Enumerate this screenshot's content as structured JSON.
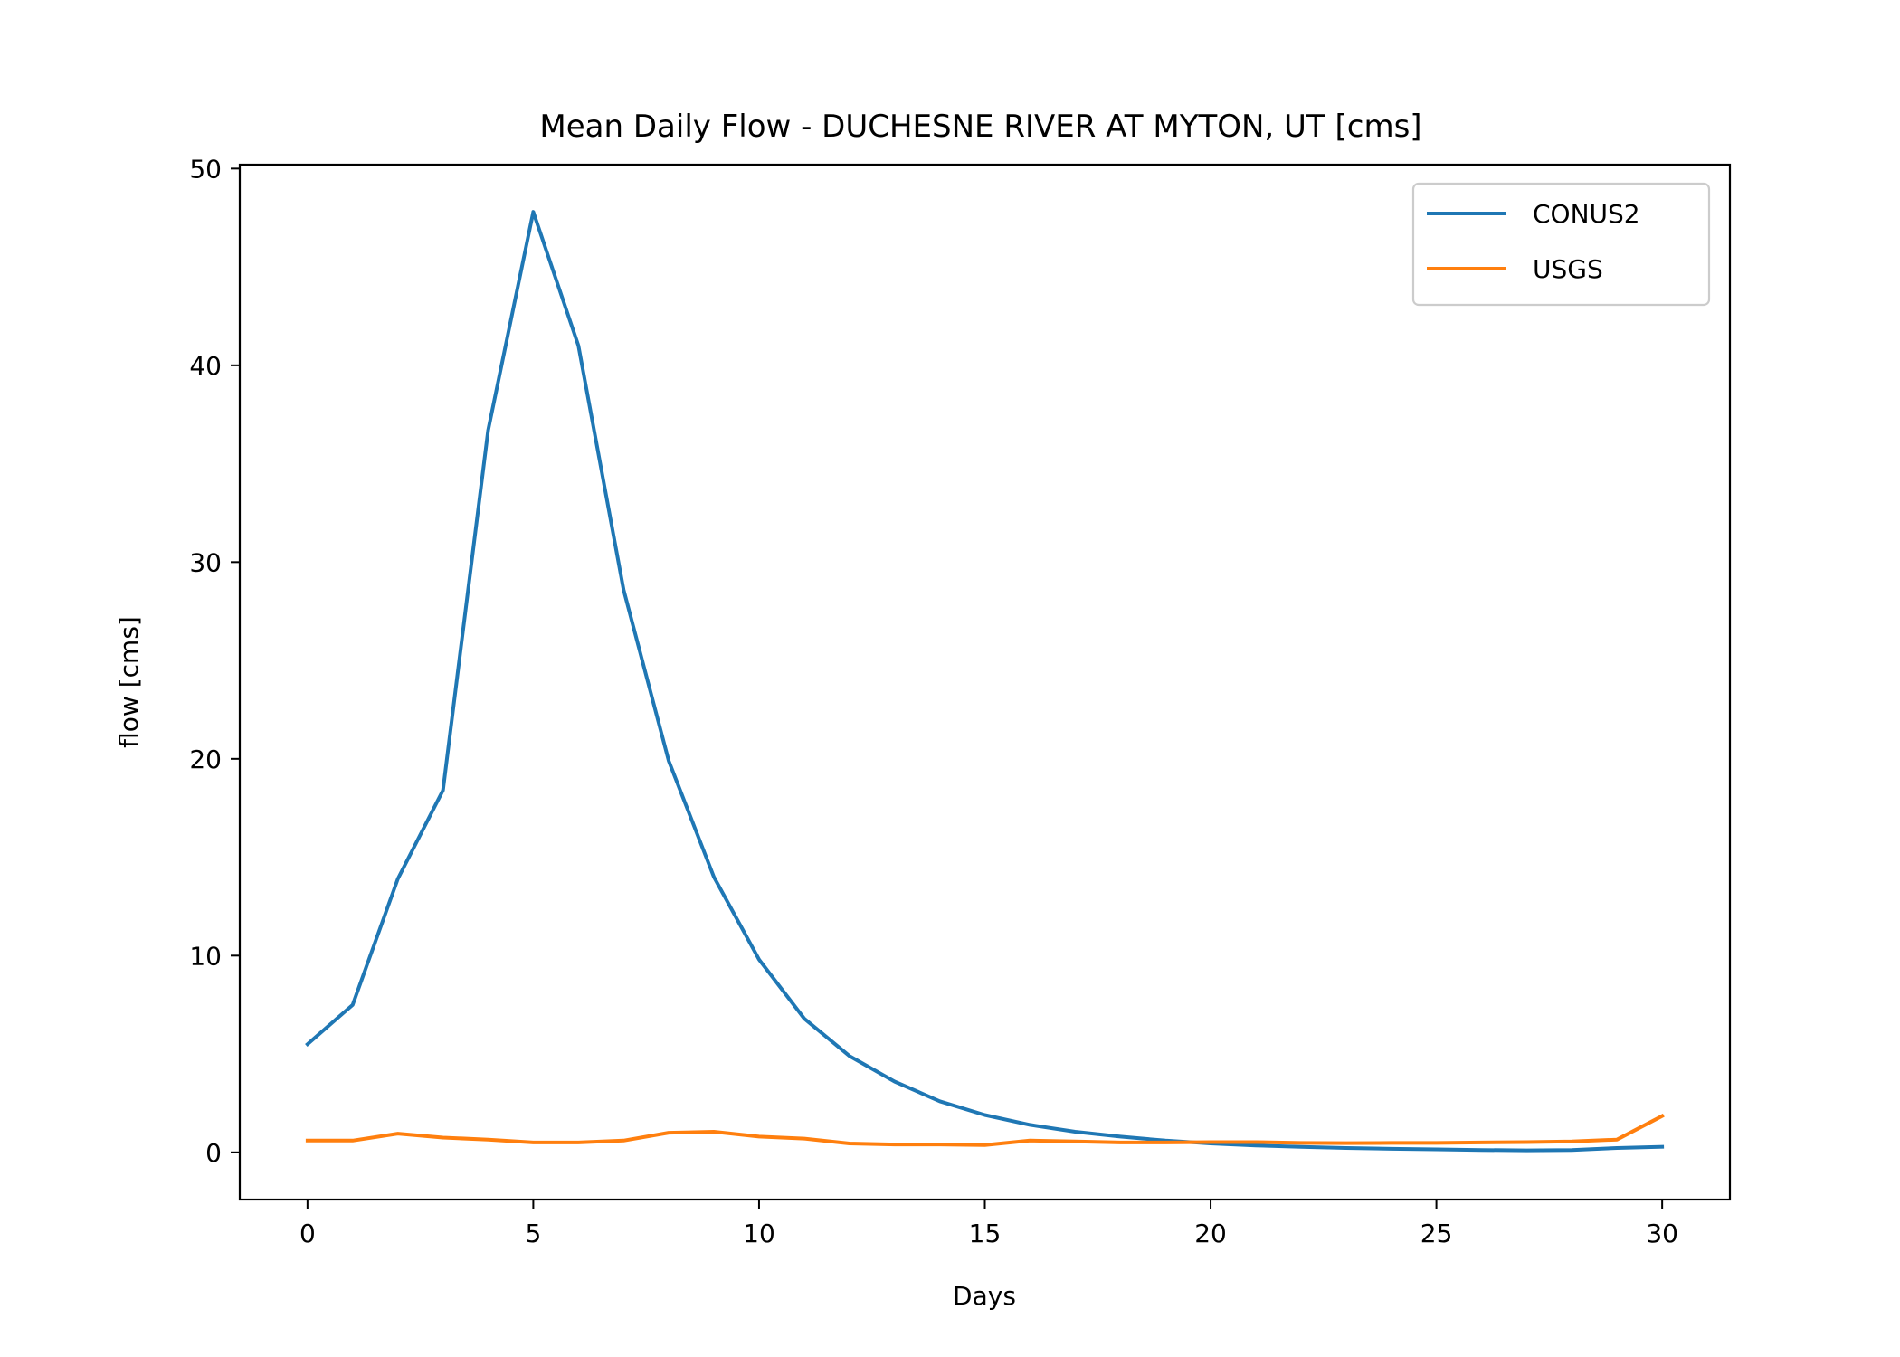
{
  "chart_data": {
    "type": "line",
    "title": "Mean Daily Flow - DUCHESNE RIVER AT MYTON, UT [cms]",
    "xlabel": "Days",
    "ylabel": "flow [cms]",
    "xlim": [
      -1.5,
      31.5
    ],
    "ylim": [
      -2.4,
      50.2
    ],
    "xticks": [
      0,
      5,
      10,
      15,
      20,
      25,
      30
    ],
    "yticks": [
      0,
      10,
      20,
      30,
      40,
      50
    ],
    "grid": false,
    "legend_position": "top-right",
    "x": [
      0,
      1,
      2,
      3,
      4,
      5,
      6,
      7,
      8,
      9,
      10,
      11,
      12,
      13,
      14,
      15,
      16,
      17,
      18,
      19,
      20,
      21,
      22,
      23,
      24,
      25,
      26,
      27,
      28,
      29,
      30
    ],
    "series": [
      {
        "name": "CONUS2",
        "color": "#1f77b4",
        "values": [
          5.5,
          7.5,
          13.9,
          18.4,
          36.7,
          47.8,
          41.0,
          28.6,
          19.9,
          14.0,
          9.8,
          6.8,
          4.9,
          3.6,
          2.6,
          1.9,
          1.4,
          1.05,
          0.8,
          0.6,
          0.45,
          0.35,
          0.28,
          0.22,
          0.18,
          0.15,
          0.12,
          0.1,
          0.12,
          0.22,
          0.28
        ]
      },
      {
        "name": "USGS",
        "color": "#ff7f0e",
        "values": [
          0.6,
          0.6,
          0.95,
          0.75,
          0.65,
          0.5,
          0.5,
          0.6,
          1.0,
          1.05,
          0.8,
          0.7,
          0.45,
          0.4,
          0.4,
          0.37,
          0.6,
          0.55,
          0.5,
          0.5,
          0.52,
          0.52,
          0.48,
          0.47,
          0.48,
          0.48,
          0.5,
          0.52,
          0.55,
          0.65,
          1.85
        ]
      }
    ]
  }
}
